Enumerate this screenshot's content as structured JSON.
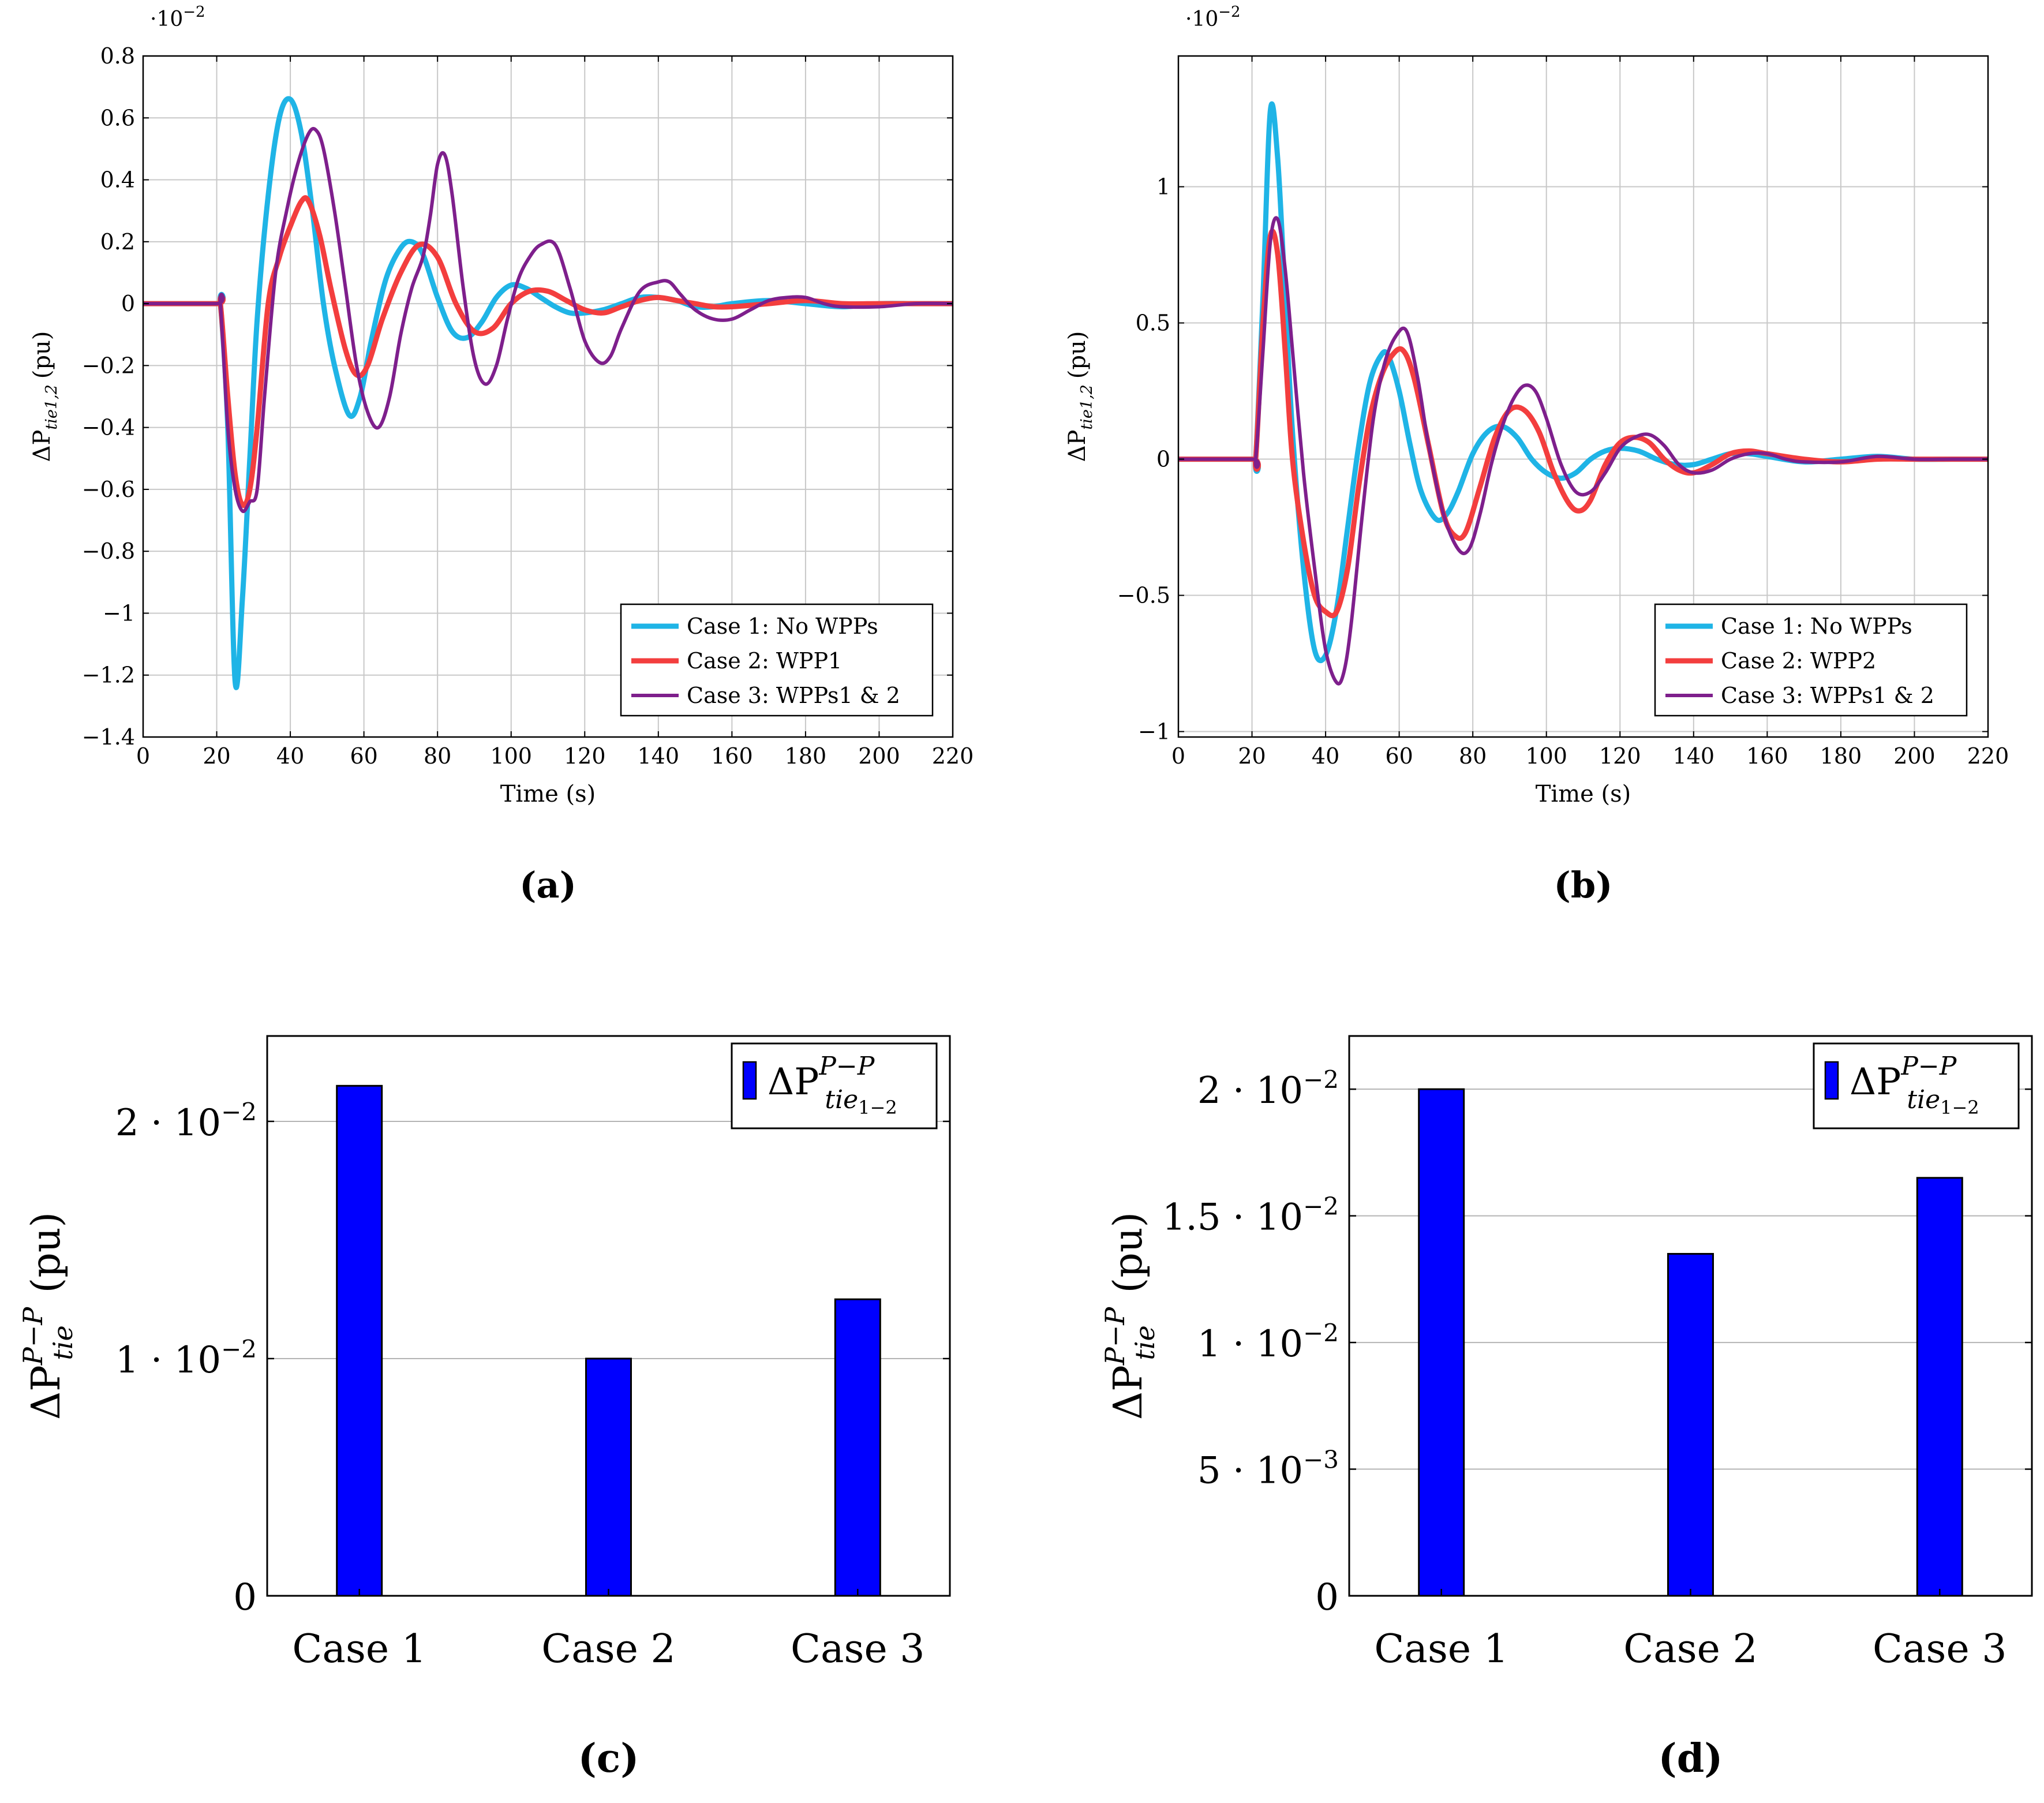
{
  "chart_data": [
    {
      "type": "line",
      "panel_label": "(a)",
      "xlabel": "Time (s)",
      "ylabel": "ΔP",
      "ylabel_sub": "tie1,2",
      "ylabel_unit": "(pu)",
      "scale_note": "·10",
      "scale_exp": "−2",
      "xlim": [
        0,
        220
      ],
      "ylim": [
        -1.4,
        0.8
      ],
      "xticks": [
        0,
        20,
        40,
        60,
        80,
        100,
        120,
        140,
        160,
        180,
        200,
        220
      ],
      "xtick_labels": [
        "0",
        "20",
        "40",
        "60",
        "80",
        "100",
        "120",
        "140",
        "160",
        "180",
        "200",
        "220"
      ],
      "yticks": [
        -1.4,
        -1.2,
        -1,
        -0.8,
        -0.6,
        -0.4,
        -0.2,
        0,
        0.2,
        0.4,
        0.6,
        0.8
      ],
      "ytick_labels": [
        "−1.4",
        "−1.2",
        "−1",
        "−0.8",
        "−0.6",
        "−0.4",
        "−0.2",
        "0",
        "0.2",
        "0.4",
        "0.6",
        "0.8"
      ],
      "grid": true,
      "legend_position": "bottom-right",
      "series": [
        {
          "name": "Case 1: No WPPs",
          "color": "#1fb4e6",
          "width": 9,
          "x": [
            0,
            20,
            21,
            23,
            25,
            27,
            29,
            31,
            34,
            37,
            40,
            43,
            46,
            49,
            52,
            56,
            59,
            62,
            66,
            70,
            73,
            76,
            80,
            84,
            88,
            92,
            96,
            100,
            104,
            108,
            112,
            116,
            120,
            125,
            130,
            135,
            140,
            145,
            150,
            155,
            160,
            170,
            180,
            190,
            200,
            210,
            220
          ],
          "y": [
            0,
            0,
            0,
            -0.4,
            -1.22,
            -0.95,
            -0.5,
            -0.05,
            0.35,
            0.6,
            0.66,
            0.55,
            0.3,
            0.0,
            -0.2,
            -0.36,
            -0.3,
            -0.12,
            0.08,
            0.18,
            0.2,
            0.16,
            0.02,
            -0.09,
            -0.11,
            -0.06,
            0.02,
            0.06,
            0.05,
            0.02,
            -0.01,
            -0.03,
            -0.03,
            -0.02,
            0.0,
            0.02,
            0.02,
            0.01,
            -0.01,
            -0.01,
            0.0,
            0.01,
            0.0,
            -0.01,
            0.0,
            0.0,
            0.0
          ]
        },
        {
          "name": "Case 2: WPP1",
          "color": "#f33e3e",
          "width": 9,
          "x": [
            0,
            20,
            21,
            23,
            25,
            27,
            29,
            31,
            34,
            37,
            40,
            43,
            45,
            48,
            51,
            55,
            58,
            61,
            65,
            70,
            75,
            80,
            85,
            90,
            95,
            100,
            105,
            110,
            115,
            120,
            125,
            130,
            135,
            140,
            145,
            150,
            155,
            160,
            170,
            180,
            190,
            200,
            210,
            220
          ],
          "y": [
            0,
            0,
            0,
            -0.3,
            -0.55,
            -0.65,
            -0.6,
            -0.4,
            0.0,
            0.15,
            0.25,
            0.33,
            0.33,
            0.22,
            0.05,
            -0.15,
            -0.23,
            -0.2,
            -0.05,
            0.1,
            0.19,
            0.15,
            0.0,
            -0.09,
            -0.08,
            0.0,
            0.04,
            0.04,
            0.01,
            -0.02,
            -0.03,
            -0.01,
            0.01,
            0.02,
            0.01,
            0.0,
            -0.01,
            -0.01,
            0.0,
            0.01,
            0.0,
            0.0,
            0.0,
            0.0
          ]
        },
        {
          "name": "Case 3: WPPs1 & 2",
          "color": "#7e1f8c",
          "width": 6,
          "x": [
            0,
            20,
            21,
            23,
            25,
            27,
            29,
            31,
            33,
            36,
            39,
            42,
            45,
            47,
            49,
            52,
            55,
            58,
            61,
            64,
            67,
            70,
            73,
            76,
            78,
            80,
            82,
            84,
            87,
            90,
            93,
            96,
            99,
            102,
            105,
            108,
            112,
            116,
            120,
            124,
            127,
            130,
            135,
            140,
            143,
            146,
            150,
            155,
            160,
            165,
            170,
            175,
            180,
            185,
            190,
            200,
            210,
            220
          ],
          "y": [
            0,
            0,
            0,
            -0.4,
            -0.6,
            -0.67,
            -0.64,
            -0.6,
            -0.3,
            0.1,
            0.3,
            0.45,
            0.55,
            0.56,
            0.5,
            0.3,
            0.05,
            -0.2,
            -0.35,
            -0.4,
            -0.3,
            -0.1,
            0.05,
            0.15,
            0.28,
            0.45,
            0.48,
            0.35,
            0.05,
            -0.18,
            -0.26,
            -0.2,
            -0.05,
            0.08,
            0.15,
            0.19,
            0.19,
            0.05,
            -0.12,
            -0.19,
            -0.17,
            -0.08,
            0.04,
            0.07,
            0.07,
            0.03,
            -0.02,
            -0.05,
            -0.05,
            -0.02,
            0.01,
            0.02,
            0.02,
            0.0,
            -0.01,
            -0.01,
            0.0,
            0.0
          ]
        }
      ]
    },
    {
      "type": "line",
      "panel_label": "(b)",
      "xlabel": "Time (s)",
      "ylabel": "ΔP",
      "ylabel_sub": "tie1,2",
      "ylabel_unit": "(pu)",
      "scale_note": "·10",
      "scale_exp": "−2",
      "xlim": [
        0,
        220
      ],
      "ylim": [
        -1.02,
        1.48
      ],
      "xticks": [
        0,
        20,
        40,
        60,
        80,
        100,
        120,
        140,
        160,
        180,
        200,
        220
      ],
      "xtick_labels": [
        "0",
        "20",
        "40",
        "60",
        "80",
        "100",
        "120",
        "140",
        "160",
        "180",
        "200",
        "220"
      ],
      "yticks": [
        -1,
        -0.5,
        0,
        0.5,
        1
      ],
      "ytick_labels": [
        "−1",
        "−0.5",
        "0",
        "0.5",
        "1"
      ],
      "grid": true,
      "legend_position": "bottom-right",
      "series": [
        {
          "name": "Case 1: No WPPs",
          "color": "#1fb4e6",
          "width": 9,
          "x": [
            0,
            20,
            21,
            23,
            25,
            27,
            29,
            31,
            34,
            37,
            40,
            43,
            46,
            49,
            52,
            55,
            57,
            60,
            63,
            66,
            70,
            73,
            76,
            80,
            84,
            88,
            92,
            96,
            100,
            104,
            108,
            112,
            116,
            120,
            125,
            130,
            135,
            140,
            145,
            150,
            155,
            160,
            170,
            180,
            190,
            200,
            210,
            220
          ],
          "y": [
            0,
            0,
            0,
            0.6,
            1.28,
            1.1,
            0.6,
            0.1,
            -0.4,
            -0.7,
            -0.72,
            -0.55,
            -0.25,
            0.05,
            0.28,
            0.38,
            0.38,
            0.25,
            0.05,
            -0.12,
            -0.22,
            -0.2,
            -0.12,
            0.02,
            0.1,
            0.12,
            0.08,
            0.0,
            -0.05,
            -0.07,
            -0.05,
            0.0,
            0.03,
            0.04,
            0.03,
            0.0,
            -0.02,
            -0.02,
            0.0,
            0.02,
            0.02,
            0.01,
            -0.01,
            0.0,
            0.01,
            0.0,
            0.0,
            0.0
          ]
        },
        {
          "name": "Case 2: WPP2",
          "color": "#f33e3e",
          "width": 9,
          "x": [
            0,
            20,
            21,
            23,
            25,
            27,
            29,
            31,
            34,
            37,
            40,
            43,
            46,
            49,
            52,
            55,
            58,
            61,
            64,
            68,
            72,
            75,
            78,
            82,
            86,
            90,
            94,
            98,
            102,
            106,
            109,
            112,
            116,
            120,
            124,
            128,
            132,
            136,
            140,
            145,
            150,
            155,
            160,
            170,
            180,
            190,
            200,
            210,
            220
          ],
          "y": [
            0,
            0,
            0,
            0.5,
            0.82,
            0.75,
            0.4,
            0.0,
            -0.3,
            -0.5,
            -0.56,
            -0.56,
            -0.4,
            -0.1,
            0.15,
            0.3,
            0.38,
            0.4,
            0.3,
            0.05,
            -0.2,
            -0.28,
            -0.27,
            -0.1,
            0.08,
            0.18,
            0.18,
            0.1,
            -0.05,
            -0.16,
            -0.19,
            -0.15,
            -0.02,
            0.06,
            0.08,
            0.06,
            0.0,
            -0.04,
            -0.05,
            -0.02,
            0.02,
            0.03,
            0.02,
            0.0,
            -0.01,
            0.0,
            0.0,
            0.0,
            0.0
          ]
        },
        {
          "name": "Case 3: WPPs1 & 2",
          "color": "#7e1f8c",
          "width": 6,
          "x": [
            0,
            20,
            21,
            23,
            25,
            27,
            29,
            31,
            34,
            37,
            40,
            43,
            45,
            47,
            50,
            53,
            56,
            59,
            62,
            65,
            68,
            72,
            76,
            79,
            82,
            85,
            88,
            91,
            94,
            97,
            100,
            104,
            108,
            112,
            116,
            120,
            124,
            128,
            132,
            136,
            140,
            145,
            150,
            155,
            160,
            165,
            170,
            180,
            190,
            200,
            210,
            220
          ],
          "y": [
            0,
            0,
            0,
            0.4,
            0.8,
            0.88,
            0.7,
            0.4,
            -0.05,
            -0.4,
            -0.7,
            -0.82,
            -0.78,
            -0.6,
            -0.2,
            0.15,
            0.35,
            0.45,
            0.47,
            0.3,
            0.05,
            -0.2,
            -0.33,
            -0.33,
            -0.2,
            -0.02,
            0.12,
            0.22,
            0.27,
            0.25,
            0.15,
            -0.02,
            -0.12,
            -0.12,
            -0.05,
            0.04,
            0.08,
            0.09,
            0.05,
            -0.02,
            -0.05,
            -0.04,
            0.0,
            0.02,
            0.02,
            0.0,
            -0.01,
            -0.01,
            0.01,
            0.0,
            0.0,
            0.0
          ]
        }
      ]
    },
    {
      "type": "bar",
      "panel_label": "(c)",
      "categories": [
        "Case 1",
        "Case 2",
        "Case 3"
      ],
      "values": [
        0.0215,
        0.01,
        0.0125
      ],
      "ylabel": "ΔP",
      "ylabel_sup": "P−P",
      "ylabel_sub": "tie",
      "ylabel_unit": "(pu)",
      "ylim": [
        0,
        0.0236
      ],
      "yticks": [
        0,
        0.01,
        0.02
      ],
      "ytick_labels": [
        {
          "text": "0",
          "mant": "",
          "exp": ""
        },
        {
          "text": "",
          "mant": "1 · 10",
          "exp": "−2"
        },
        {
          "text": "",
          "mant": "2 · 10",
          "exp": "−2"
        }
      ],
      "grid": true,
      "legend": {
        "label": "ΔP",
        "sup": "P−P",
        "sub": "tie",
        "subsub": "1−2",
        "position": "top-right"
      },
      "bar_color": "#0000ff"
    },
    {
      "type": "bar",
      "panel_label": "(d)",
      "categories": [
        "Case 1",
        "Case 2",
        "Case 3"
      ],
      "values": [
        0.02,
        0.0135,
        0.0165
      ],
      "ylabel": "ΔP",
      "ylabel_sup": "P−P",
      "ylabel_sub": "tie",
      "ylabel_unit": "(pu)",
      "ylim": [
        0,
        0.0221
      ],
      "yticks": [
        0,
        0.005,
        0.01,
        0.015,
        0.02
      ],
      "ytick_labels": [
        {
          "text": "0",
          "mant": "",
          "exp": ""
        },
        {
          "text": "",
          "mant": "5 · 10",
          "exp": "−3"
        },
        {
          "text": "",
          "mant": "1 · 10",
          "exp": "−2"
        },
        {
          "text": "",
          "mant": "1.5 · 10",
          "exp": "−2"
        },
        {
          "text": "",
          "mant": "2 · 10",
          "exp": "−2"
        }
      ],
      "grid": true,
      "legend": {
        "label": "ΔP",
        "sup": "P−P",
        "sub": "tie",
        "subsub": "1−2",
        "position": "top-right"
      },
      "bar_color": "#0000ff"
    }
  ]
}
